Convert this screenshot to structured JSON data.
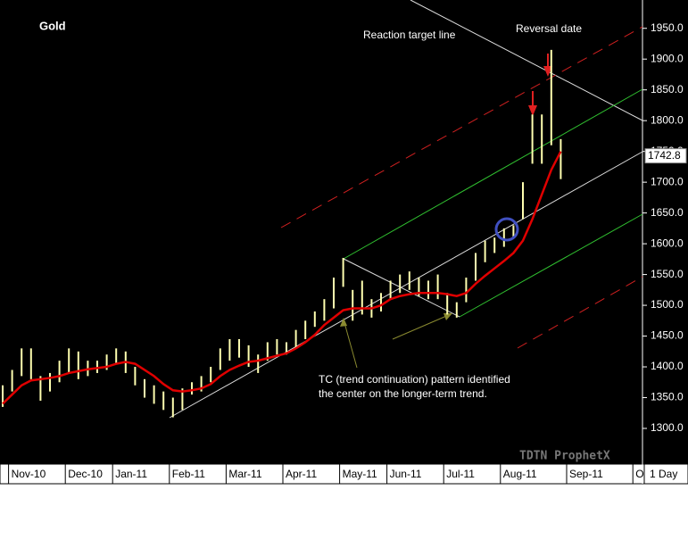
{
  "chart_data": {
    "type": "hilo",
    "title": "Gold",
    "categories": [
      null,
      "Nov-10",
      null,
      null,
      null,
      null,
      null,
      "Dec-10",
      null,
      null,
      null,
      null,
      "Jan-11",
      null,
      null,
      null,
      null,
      null,
      "Feb-11",
      null,
      null,
      null,
      null,
      null,
      "Mar-11",
      null,
      null,
      null,
      null,
      null,
      "Apr-11",
      null,
      null,
      null,
      null,
      null,
      "May-11",
      null,
      null,
      null,
      null,
      "Jun-11",
      null,
      null,
      null,
      null,
      null,
      "Jul-11",
      null,
      null,
      null,
      null,
      null,
      "Aug-11",
      null,
      null,
      null,
      null,
      null,
      null,
      "Sep-11",
      null,
      null,
      null,
      null,
      null,
      null,
      "O"
    ],
    "highs": [
      1370,
      1395,
      1430,
      1430,
      1385,
      1390,
      1410,
      1430,
      1425,
      1410,
      1410,
      1420,
      1430,
      1425,
      1400,
      1380,
      1370,
      1360,
      1350,
      1365,
      1375,
      1385,
      1400,
      1430,
      1445,
      1445,
      1435,
      1420,
      1440,
      1445,
      1440,
      1460,
      1475,
      1490,
      1510,
      1545,
      1577,
      1525,
      1540,
      1510,
      1520,
      1540,
      1550,
      1555,
      1545,
      1540,
      1550,
      1520,
      1505,
      1545,
      1585,
      1605,
      1610,
      1625,
      1630,
      1700,
      1810,
      1810,
      1915,
      1770,
      null,
      null,
      null,
      null,
      null,
      null,
      null,
      null
    ],
    "lows": [
      1335,
      1360,
      1385,
      1380,
      1345,
      1360,
      1375,
      1390,
      1380,
      1385,
      1390,
      1395,
      1405,
      1390,
      1370,
      1350,
      1340,
      1330,
      1318,
      1330,
      1355,
      1360,
      1375,
      1395,
      1410,
      1415,
      1400,
      1390,
      1410,
      1420,
      1420,
      1430,
      1445,
      1465,
      1475,
      1495,
      1530,
      1475,
      1485,
      1480,
      1490,
      1510,
      1520,
      1525,
      1515,
      1510,
      1510,
      1485,
      1480,
      1505,
      1540,
      1570,
      1585,
      1595,
      1610,
      1640,
      1730,
      1730,
      1760,
      1705,
      null,
      null,
      null,
      null,
      null,
      null,
      null,
      null
    ],
    "bar_color": "#ffffb0",
    "ma_values": [
      1340,
      1355,
      1370,
      1378,
      1380,
      1382,
      1385,
      1390,
      1393,
      1396,
      1398,
      1400,
      1405,
      1408,
      1405,
      1395,
      1385,
      1372,
      1362,
      1360,
      1362,
      1365,
      1372,
      1385,
      1395,
      1402,
      1408,
      1410,
      1414,
      1418,
      1422,
      1430,
      1440,
      1452,
      1468,
      1480,
      1492,
      1495,
      1495,
      1495,
      1500,
      1510,
      1515,
      1518,
      1520,
      1520,
      1520,
      1518,
      1515,
      1520,
      1535,
      1548,
      1560,
      1572,
      1585,
      1605,
      1640,
      1680,
      1720,
      1750,
      null,
      null,
      null,
      null,
      null,
      null,
      null,
      null
    ],
    "ma_color": "#e00000",
    "ylim": [
      1242,
      1996
    ],
    "yticks": [
      {
        "value": 1300,
        "label": "1300.0"
      },
      {
        "value": 1350,
        "label": "1350.0"
      },
      {
        "value": 1400,
        "label": "1400.0"
      },
      {
        "value": 1450,
        "label": "1450.0"
      },
      {
        "value": 1500,
        "label": "1500.0"
      },
      {
        "value": 1550,
        "label": "1550.0"
      },
      {
        "value": 1600,
        "label": "1600.0"
      },
      {
        "value": 1650,
        "label": "1650.0"
      },
      {
        "value": 1700,
        "label": "1700.0"
      },
      {
        "value": 1750,
        "label": "1750.0"
      },
      {
        "value": 1800,
        "label": "1800.0"
      },
      {
        "value": 1850,
        "label": "1850.0"
      },
      {
        "value": 1900,
        "label": "1900.0"
      },
      {
        "value": 1950,
        "label": "1950.0"
      }
    ],
    "last_price": {
      "value": 1742.8,
      "label": "1742.8"
    },
    "annotations": {
      "reaction": "Reaction target line",
      "reversal": "Reversal date",
      "tc_line1": "TC (trend continuation) pattern identified",
      "tc_line2": "the center on the longer-term trend."
    },
    "watermark": "TDTN ProphetX",
    "interval": "1 Day"
  }
}
